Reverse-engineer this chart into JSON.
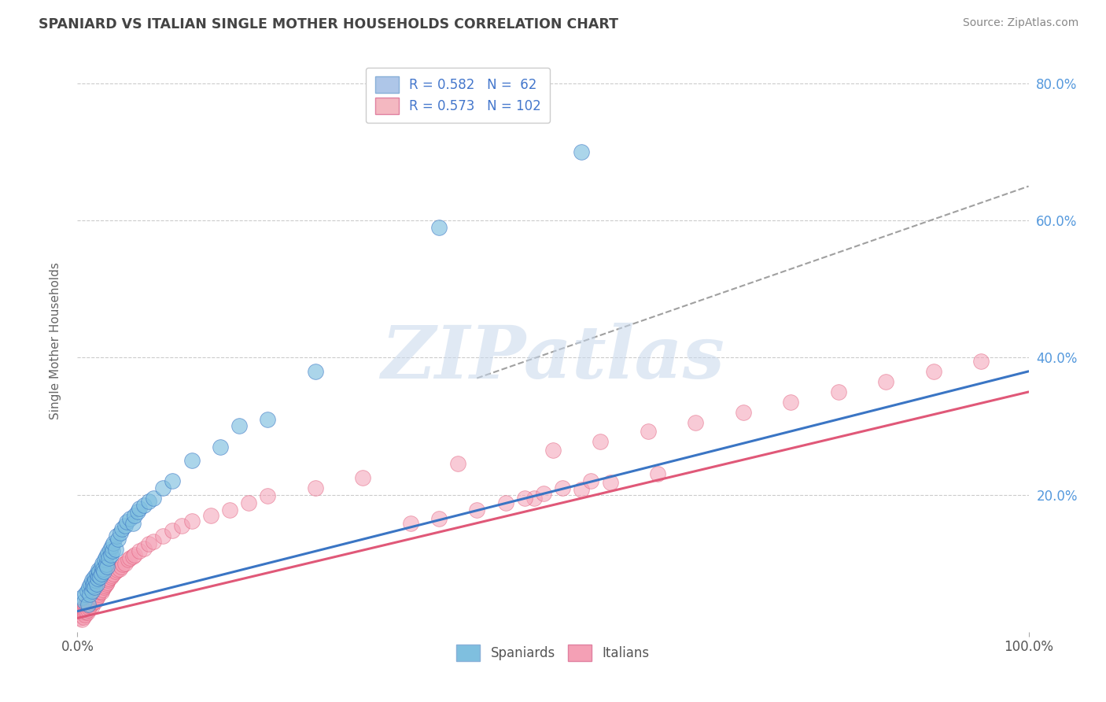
{
  "title": "SPANIARD VS ITALIAN SINGLE MOTHER HOUSEHOLDS CORRELATION CHART",
  "source_text": "Source: ZipAtlas.com",
  "ylabel": "Single Mother Households",
  "xlabel": "",
  "xlim": [
    0.0,
    1.0
  ],
  "ylim": [
    0.0,
    0.85
  ],
  "xtick_labels": [
    "0.0%",
    "100.0%"
  ],
  "ytick_labels": [
    "20.0%",
    "40.0%",
    "60.0%",
    "80.0%"
  ],
  "ytick_positions": [
    0.2,
    0.4,
    0.6,
    0.8
  ],
  "legend_entries": [
    {
      "label": "R = 0.582   N =  62",
      "color": "#aec6e8"
    },
    {
      "label": "R = 0.573   N = 102",
      "color": "#f4b8c1"
    }
  ],
  "legend_label_spaniards": "Spaniards",
  "legend_label_italians": "Italians",
  "spaniard_color": "#7fbfdf",
  "italian_color": "#f4a0b5",
  "spaniard_line_color": "#3a75c4",
  "italian_line_color": "#e05878",
  "dashed_line_color": "#a0a0a0",
  "watermark_color": "#c8d8ec",
  "watermark_text": "ZIPatlas",
  "background_color": "#ffffff",
  "grid_color": "#cccccc",
  "title_color": "#444444",
  "spaniard_x": [
    0.005,
    0.007,
    0.008,
    0.01,
    0.011,
    0.012,
    0.013,
    0.014,
    0.015,
    0.015,
    0.016,
    0.017,
    0.018,
    0.018,
    0.019,
    0.02,
    0.02,
    0.021,
    0.022,
    0.022,
    0.023,
    0.024,
    0.025,
    0.025,
    0.026,
    0.027,
    0.028,
    0.029,
    0.03,
    0.03,
    0.031,
    0.032,
    0.033,
    0.034,
    0.035,
    0.036,
    0.037,
    0.038,
    0.04,
    0.041,
    0.043,
    0.045,
    0.047,
    0.05,
    0.052,
    0.055,
    0.058,
    0.06,
    0.063,
    0.065,
    0.07,
    0.075,
    0.08,
    0.09,
    0.1,
    0.12,
    0.15,
    0.17,
    0.2,
    0.25,
    0.38,
    0.53
  ],
  "spaniard_y": [
    0.05,
    0.045,
    0.055,
    0.06,
    0.04,
    0.065,
    0.055,
    0.07,
    0.06,
    0.075,
    0.068,
    0.072,
    0.08,
    0.065,
    0.075,
    0.07,
    0.085,
    0.078,
    0.082,
    0.09,
    0.088,
    0.08,
    0.095,
    0.085,
    0.1,
    0.092,
    0.088,
    0.105,
    0.098,
    0.11,
    0.095,
    0.115,
    0.108,
    0.12,
    0.112,
    0.125,
    0.118,
    0.13,
    0.12,
    0.14,
    0.135,
    0.145,
    0.15,
    0.155,
    0.16,
    0.165,
    0.158,
    0.17,
    0.175,
    0.18,
    0.185,
    0.19,
    0.195,
    0.21,
    0.22,
    0.25,
    0.27,
    0.3,
    0.31,
    0.38,
    0.59,
    0.7
  ],
  "italian_x": [
    0.003,
    0.004,
    0.005,
    0.005,
    0.006,
    0.006,
    0.007,
    0.007,
    0.008,
    0.008,
    0.009,
    0.009,
    0.01,
    0.01,
    0.011,
    0.011,
    0.012,
    0.012,
    0.013,
    0.013,
    0.014,
    0.014,
    0.015,
    0.015,
    0.016,
    0.016,
    0.017,
    0.017,
    0.018,
    0.018,
    0.019,
    0.019,
    0.02,
    0.02,
    0.021,
    0.021,
    0.022,
    0.022,
    0.023,
    0.023,
    0.024,
    0.024,
    0.025,
    0.025,
    0.026,
    0.027,
    0.028,
    0.029,
    0.03,
    0.031,
    0.032,
    0.033,
    0.035,
    0.036,
    0.038,
    0.04,
    0.042,
    0.044,
    0.046,
    0.048,
    0.05,
    0.053,
    0.055,
    0.058,
    0.06,
    0.065,
    0.07,
    0.075,
    0.08,
    0.09,
    0.1,
    0.11,
    0.12,
    0.14,
    0.16,
    0.18,
    0.2,
    0.25,
    0.3,
    0.4,
    0.5,
    0.55,
    0.6,
    0.65,
    0.7,
    0.75,
    0.8,
    0.85,
    0.9,
    0.95,
    0.48,
    0.53,
    0.56,
    0.61,
    0.42,
    0.38,
    0.35,
    0.45,
    0.47,
    0.49,
    0.51,
    0.54
  ],
  "italian_y": [
    0.02,
    0.025,
    0.018,
    0.03,
    0.022,
    0.035,
    0.028,
    0.032,
    0.025,
    0.038,
    0.03,
    0.04,
    0.028,
    0.042,
    0.032,
    0.045,
    0.035,
    0.048,
    0.038,
    0.05,
    0.04,
    0.052,
    0.038,
    0.055,
    0.042,
    0.058,
    0.045,
    0.06,
    0.048,
    0.062,
    0.045,
    0.065,
    0.05,
    0.068,
    0.052,
    0.07,
    0.055,
    0.072,
    0.058,
    0.075,
    0.06,
    0.078,
    0.058,
    0.08,
    0.062,
    0.082,
    0.065,
    0.068,
    0.07,
    0.072,
    0.075,
    0.078,
    0.08,
    0.082,
    0.085,
    0.088,
    0.09,
    0.092,
    0.095,
    0.098,
    0.1,
    0.105,
    0.108,
    0.11,
    0.112,
    0.118,
    0.122,
    0.128,
    0.132,
    0.14,
    0.148,
    0.155,
    0.162,
    0.17,
    0.178,
    0.188,
    0.198,
    0.21,
    0.225,
    0.245,
    0.265,
    0.278,
    0.292,
    0.305,
    0.32,
    0.335,
    0.35,
    0.365,
    0.38,
    0.395,
    0.195,
    0.208,
    0.218,
    0.23,
    0.178,
    0.165,
    0.158,
    0.188,
    0.195,
    0.202,
    0.21,
    0.22
  ],
  "spaniard_line_x": [
    0.0,
    1.0
  ],
  "spaniard_line_y": [
    0.03,
    0.38
  ],
  "italian_line_x": [
    0.0,
    1.0
  ],
  "italian_line_y": [
    0.02,
    0.35
  ],
  "dashed_line_x": [
    0.42,
    1.0
  ],
  "dashed_line_y": [
    0.37,
    0.65
  ]
}
